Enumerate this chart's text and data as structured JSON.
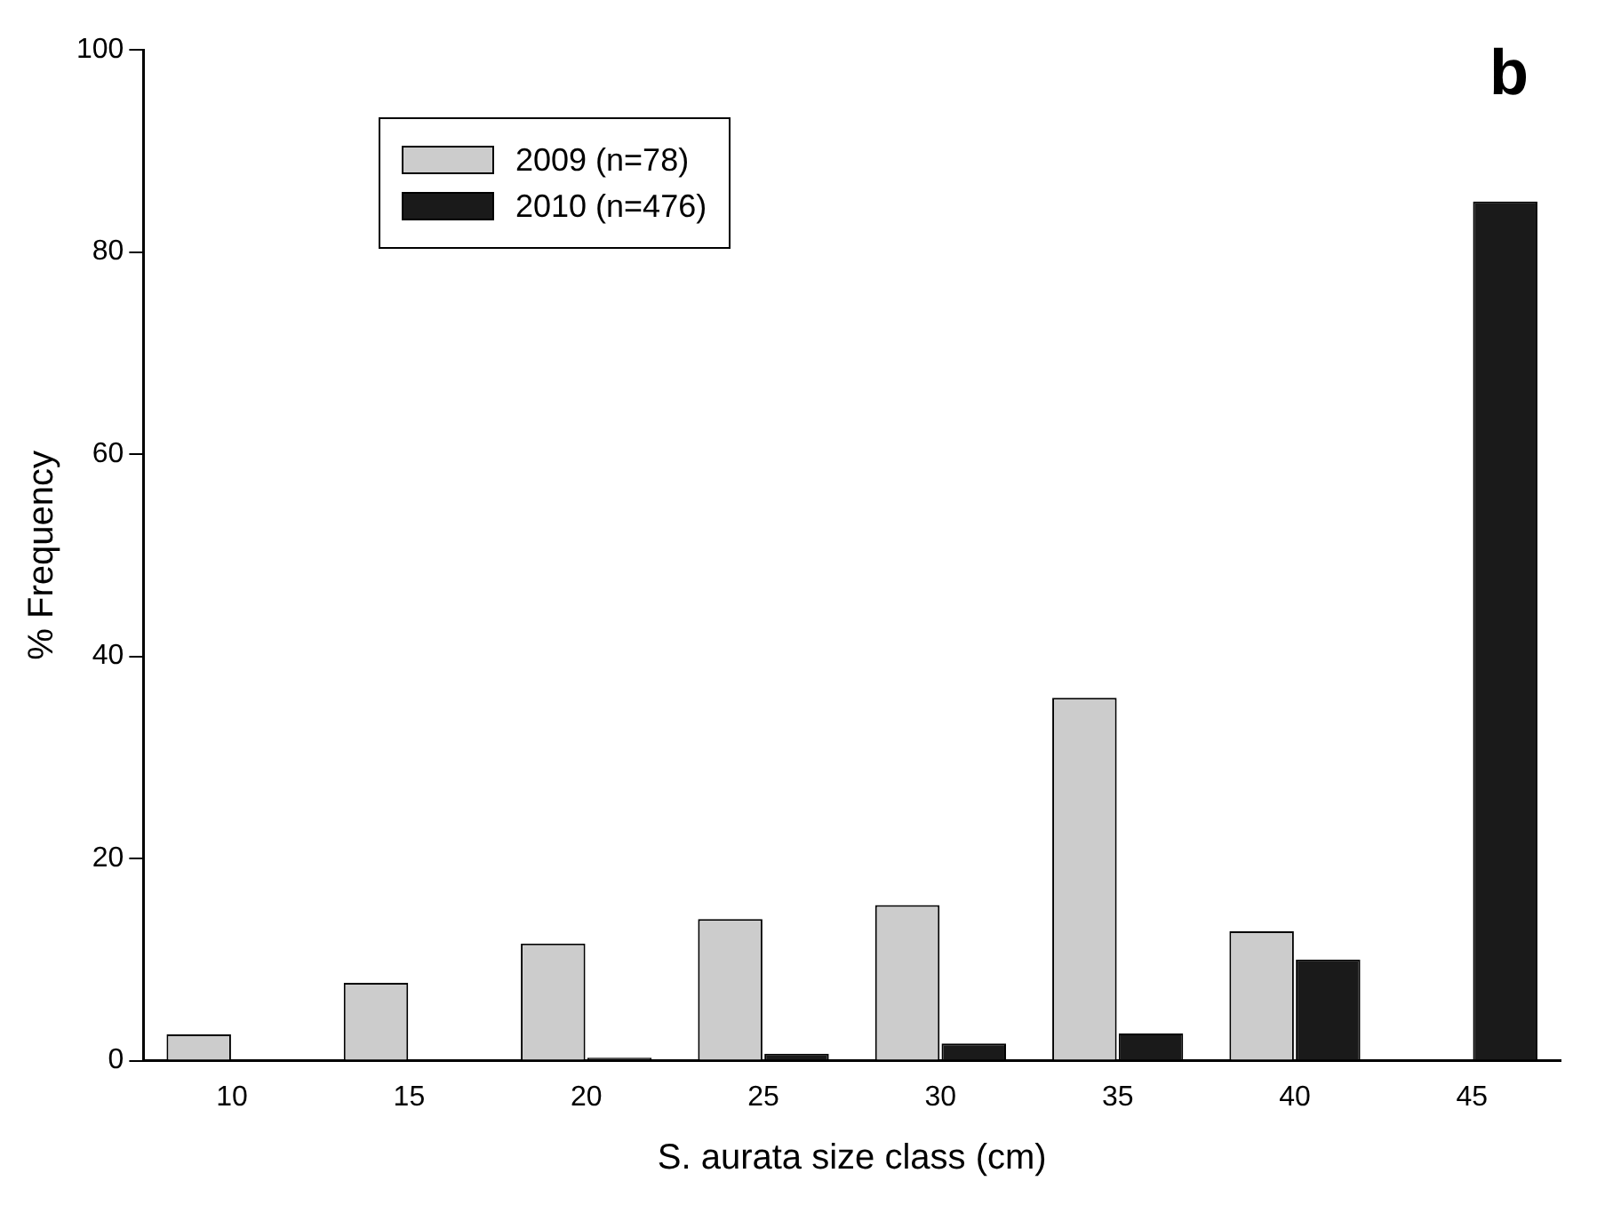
{
  "chart_data": {
    "type": "bar",
    "xlabel": "S. aurata size class (cm)",
    "ylabel": "% Frequency",
    "categories": [
      "10",
      "15",
      "20",
      "25",
      "30",
      "35",
      "40",
      "45"
    ],
    "series": [
      {
        "name": "2009 (n=78)",
        "color": "#cccccc",
        "values": [
          2.6,
          7.7,
          11.6,
          14.0,
          15.4,
          35.9,
          12.8,
          0
        ]
      },
      {
        "name": "2010 (n=476)",
        "color": "#1a1a1a",
        "values": [
          0,
          0,
          0.3,
          0.7,
          1.7,
          2.7,
          10.0,
          85
        ]
      }
    ],
    "ylim": [
      0,
      100
    ],
    "yticks": [
      0,
      20,
      40,
      60,
      80,
      100
    ],
    "grid": false,
    "legend": "top left",
    "annotations": [
      "b"
    ]
  }
}
